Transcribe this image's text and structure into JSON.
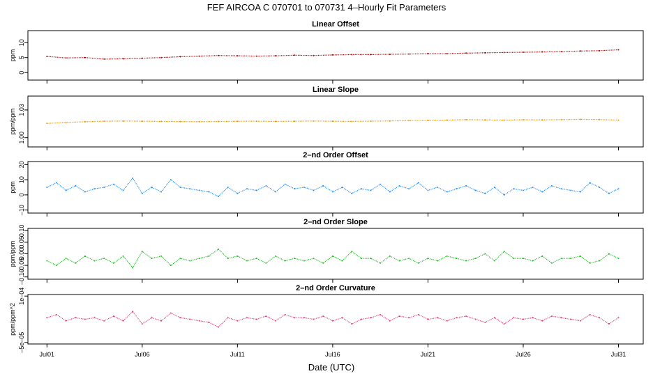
{
  "figure": {
    "title": "FEF   AIRCOA C   070701 to 070731   4–Hourly Fit Parameters",
    "xlabel": "Date (UTC)"
  },
  "chart_data": [
    {
      "type": "line",
      "title": "Linear Offset",
      "ylabel": "ppm",
      "ylim": [
        -2.5,
        14
      ],
      "yticks": [
        0,
        5,
        10
      ],
      "ytick_labels": [
        "0",
        "5",
        "10"
      ],
      "color": "#a00000",
      "series": [
        {
          "x": [
            1.0,
            2.0,
            3.0,
            4.0,
            5.0,
            6.0,
            7.0,
            8.0,
            9.0,
            10.0,
            11.0,
            12.0,
            13.0,
            14.0,
            15.0,
            16.0,
            17.0,
            18.0,
            19.0,
            20.0,
            21.0,
            22.0,
            23.0,
            24.0,
            25.0,
            26.0,
            27.0,
            28.0,
            29.0,
            30.0,
            31.0
          ],
          "values": [
            5.4,
            4.9,
            5.0,
            4.5,
            4.6,
            4.8,
            5.0,
            5.3,
            5.5,
            5.7,
            5.6,
            5.5,
            5.6,
            5.8,
            5.7,
            5.9,
            6.0,
            6.0,
            6.1,
            6.2,
            6.3,
            6.3,
            6.5,
            6.6,
            6.7,
            6.8,
            6.9,
            7.0,
            7.2,
            7.3,
            7.6
          ]
        }
      ]
    },
    {
      "type": "line",
      "title": "Linear Slope",
      "ylabel": "ppm/ppm",
      "ylim": [
        0.99,
        1.045
      ],
      "yticks": [
        1.0,
        1.03
      ],
      "ytick_labels": [
        "1.00",
        "1.03"
      ],
      "color": "#e69500",
      "series": [
        {
          "x": [
            1.0,
            2.0,
            3.0,
            4.0,
            5.0,
            6.0,
            7.0,
            8.0,
            9.0,
            10.0,
            11.0,
            12.0,
            13.0,
            14.0,
            15.0,
            16.0,
            17.0,
            18.0,
            19.0,
            20.0,
            21.0,
            22.0,
            23.0,
            24.0,
            25.0,
            26.0,
            27.0,
            28.0,
            29.0,
            30.0,
            31.0
          ],
          "values": [
            1.0155,
            1.0165,
            1.0172,
            1.0178,
            1.018,
            1.0178,
            1.0176,
            1.0174,
            1.0173,
            1.0175,
            1.0177,
            1.0178,
            1.0176,
            1.0178,
            1.018,
            1.0178,
            1.0176,
            1.0179,
            1.0181,
            1.0185,
            1.0188,
            1.019,
            1.0195,
            1.0192,
            1.019,
            1.0194,
            1.0192,
            1.0195,
            1.0198,
            1.0196,
            1.019
          ]
        }
      ]
    },
    {
      "type": "line",
      "title": "2–nd Order Offset",
      "ylabel": "ppm",
      "ylim": [
        -12,
        22
      ],
      "yticks": [
        -10,
        0,
        10,
        20
      ],
      "ytick_labels": [
        "–10",
        "0",
        "10",
        "20"
      ],
      "color": "#1e90ff",
      "series": [
        {
          "x": [
            1.0,
            1.5,
            2.0,
            2.5,
            3.0,
            3.5,
            4.0,
            4.5,
            5.0,
            5.5,
            6.0,
            6.5,
            7.0,
            7.5,
            8.0,
            8.5,
            9.0,
            9.5,
            10.0,
            10.5,
            11.0,
            11.5,
            12.0,
            12.5,
            13.0,
            13.5,
            14.0,
            14.5,
            15.0,
            15.5,
            16.0,
            16.5,
            17.0,
            17.5,
            18.0,
            18.5,
            19.0,
            19.5,
            20.0,
            20.5,
            21.0,
            21.5,
            22.0,
            22.5,
            23.0,
            23.5,
            24.0,
            24.5,
            25.0,
            25.5,
            26.0,
            26.5,
            27.0,
            27.5,
            28.0,
            28.5,
            29.0,
            29.5,
            30.0,
            30.5,
            31.0
          ],
          "values": [
            5,
            8,
            3,
            6,
            2,
            4,
            5,
            7,
            3,
            11,
            1,
            5,
            2,
            10,
            5,
            4,
            3,
            2,
            -1,
            5,
            1,
            4,
            3,
            6,
            2,
            7,
            4,
            5,
            3,
            6,
            2,
            5,
            1,
            4,
            3,
            7,
            2,
            6,
            4,
            8,
            3,
            5,
            2,
            4,
            6,
            3,
            1,
            5,
            0,
            4,
            3,
            5,
            2,
            6,
            4,
            3,
            2,
            8,
            5,
            1,
            4
          ]
        }
      ]
    },
    {
      "type": "line",
      "title": "2–nd Order Slope",
      "ylabel": "ppm/ppm",
      "ylim": [
        -0.11,
        0.11
      ],
      "yticks": [
        -0.1,
        -0.05,
        0.0,
        0.05,
        0.1
      ],
      "ytick_labels": [
        "–0.10",
        "–0.05",
        "0.00",
        "0.05",
        "0.10"
      ],
      "color": "#22bb22",
      "series": [
        {
          "x": [
            1.0,
            1.5,
            2.0,
            2.5,
            3.0,
            3.5,
            4.0,
            4.5,
            5.0,
            5.5,
            6.0,
            6.5,
            7.0,
            7.5,
            8.0,
            8.5,
            9.0,
            9.5,
            10.0,
            10.5,
            11.0,
            11.5,
            12.0,
            12.5,
            13.0,
            13.5,
            14.0,
            14.5,
            15.0,
            15.5,
            16.0,
            16.5,
            17.0,
            17.5,
            18.0,
            18.5,
            19.0,
            19.5,
            20.0,
            20.5,
            21.0,
            21.5,
            22.0,
            22.5,
            23.0,
            23.5,
            24.0,
            24.5,
            25.0,
            25.5,
            26.0,
            26.5,
            27.0,
            27.5,
            28.0,
            28.5,
            29.0,
            29.5,
            30.0,
            30.5,
            31.0
          ],
          "values": [
            -0.03,
            -0.05,
            -0.02,
            -0.04,
            -0.01,
            -0.03,
            -0.02,
            -0.04,
            -0.01,
            -0.06,
            0.01,
            -0.02,
            -0.01,
            -0.05,
            -0.02,
            -0.03,
            -0.02,
            -0.01,
            0.02,
            -0.02,
            -0.01,
            -0.03,
            -0.02,
            -0.04,
            -0.01,
            -0.03,
            -0.02,
            -0.03,
            -0.02,
            -0.04,
            -0.01,
            -0.03,
            0.01,
            -0.02,
            -0.02,
            -0.04,
            -0.01,
            -0.03,
            -0.02,
            -0.04,
            -0.02,
            -0.03,
            -0.01,
            -0.02,
            -0.03,
            -0.02,
            0.0,
            -0.03,
            0.01,
            -0.02,
            -0.02,
            -0.03,
            -0.01,
            -0.04,
            -0.02,
            -0.02,
            -0.01,
            -0.04,
            -0.03,
            0.0,
            -0.02
          ]
        }
      ]
    },
    {
      "type": "line",
      "title": "2–nd Order Curvature",
      "ylabel": "ppm/ppm^2",
      "ylim": [
        -5.5e-05,
        0.000105
      ],
      "yticks": [
        -5e-05,
        0.0001
      ],
      "ytick_labels": [
        "–5e–05",
        "1e–04"
      ],
      "color": "#e0406e",
      "series": [
        {
          "x": [
            1.0,
            1.5,
            2.0,
            2.5,
            3.0,
            3.5,
            4.0,
            4.5,
            5.0,
            5.5,
            6.0,
            6.5,
            7.0,
            7.5,
            8.0,
            8.5,
            9.0,
            9.5,
            10.0,
            10.5,
            11.0,
            11.5,
            12.0,
            12.5,
            13.0,
            13.5,
            14.0,
            14.5,
            15.0,
            15.5,
            16.0,
            16.5,
            17.0,
            17.5,
            18.0,
            18.5,
            19.0,
            19.5,
            20.0,
            20.5,
            21.0,
            21.5,
            22.0,
            22.5,
            23.0,
            23.5,
            24.0,
            24.5,
            25.0,
            25.5,
            26.0,
            26.5,
            27.0,
            27.5,
            28.0,
            28.5,
            29.0,
            29.5,
            30.0,
            30.5,
            31.0
          ],
          "values": [
            3e-05,
            4e-05,
            2e-05,
            3e-05,
            2.5e-05,
            3e-05,
            2e-05,
            3.5e-05,
            2e-05,
            5e-05,
            1e-05,
            3e-05,
            2e-05,
            4.5e-05,
            3e-05,
            2.5e-05,
            2e-05,
            1.5e-05,
            0,
            3e-05,
            2e-05,
            3e-05,
            2.5e-05,
            3.5e-05,
            2e-05,
            4e-05,
            3e-05,
            3e-05,
            2.5e-05,
            3.5e-05,
            2e-05,
            3e-05,
            1e-05,
            2.5e-05,
            3e-05,
            4e-05,
            2e-05,
            3.5e-05,
            3e-05,
            4e-05,
            2.5e-05,
            3e-05,
            2e-05,
            3e-05,
            3.5e-05,
            2.5e-05,
            1.5e-05,
            3e-05,
            1e-05,
            3e-05,
            2.5e-05,
            3e-05,
            2e-05,
            3.5e-05,
            3e-05,
            2.5e-05,
            2e-05,
            4e-05,
            3e-05,
            1e-05,
            3e-05
          ]
        }
      ]
    }
  ],
  "xaxis": {
    "range": [
      0.0,
      32.3
    ],
    "ticks": [
      1,
      6,
      11,
      16,
      21,
      26,
      31
    ],
    "tick_labels": [
      "Jul01",
      "Jul06",
      "Jul11",
      "Jul16",
      "Jul21",
      "Jul26",
      "Jul31"
    ]
  }
}
